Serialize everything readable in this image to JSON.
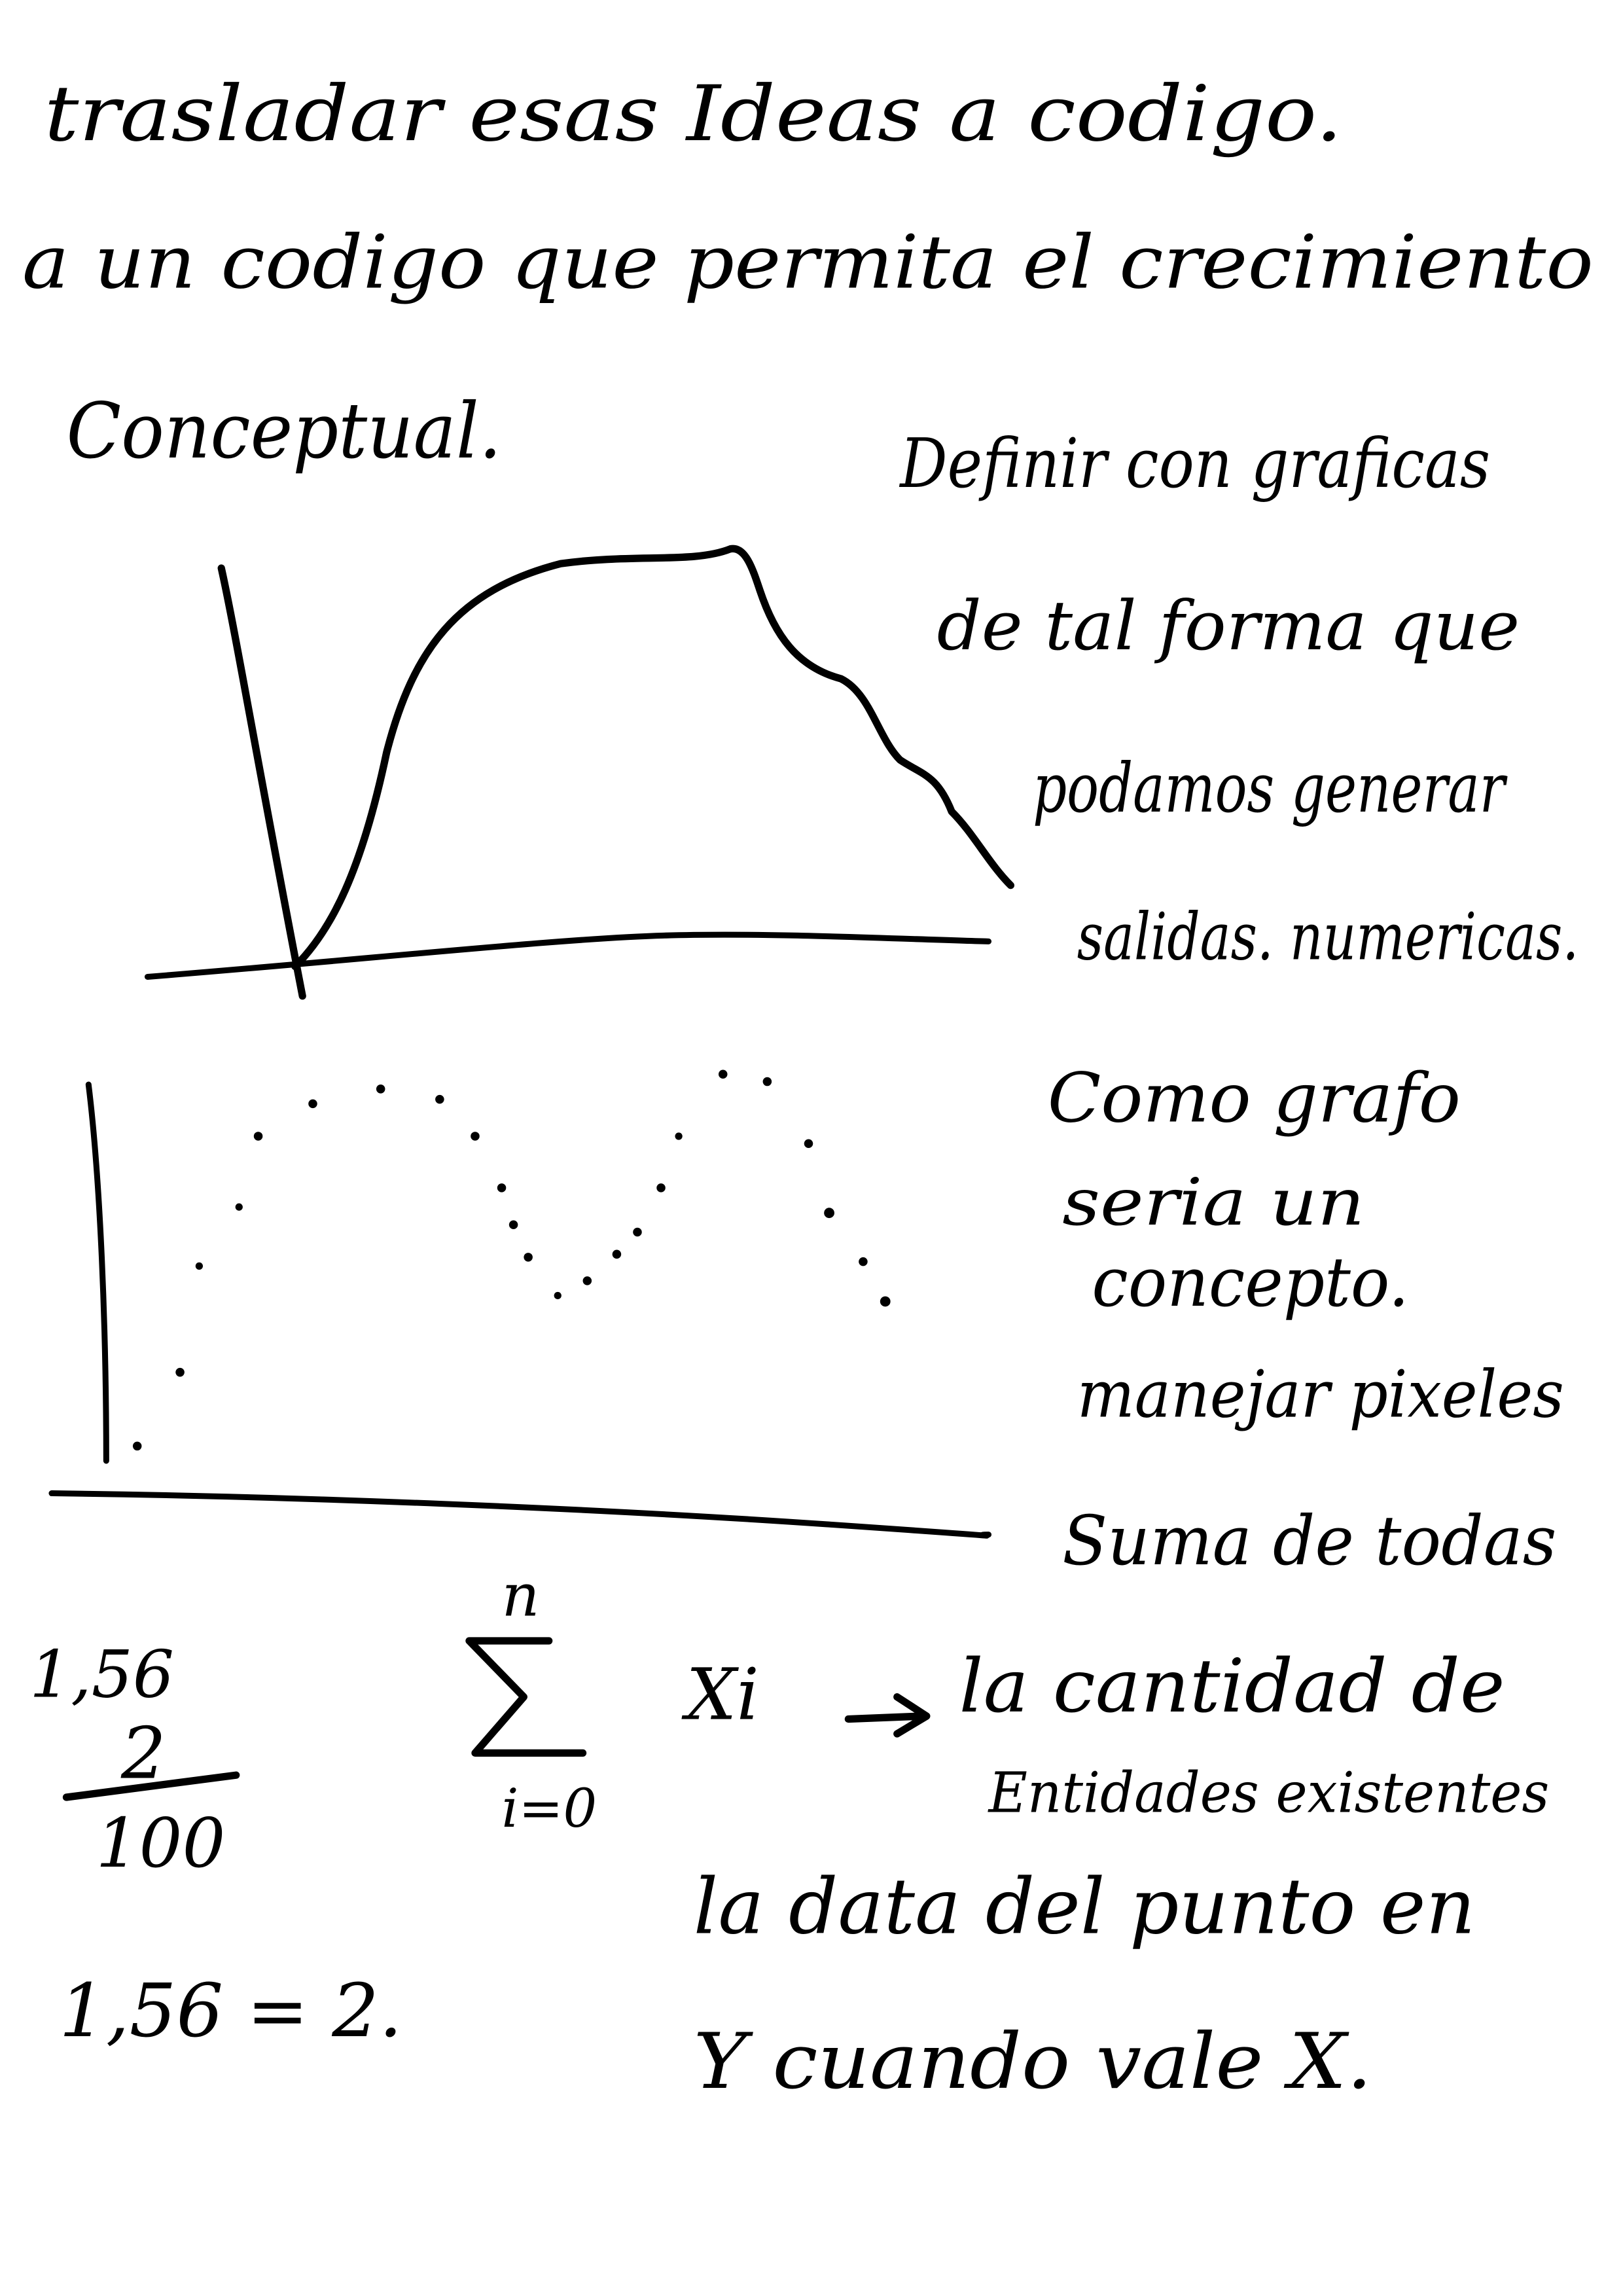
{
  "header": {
    "lines": [
      "trasladar esas Ideas a codigo.",
      "a un codigo que permita el crecimiento",
      "Conceptual."
    ]
  },
  "notes": {
    "graph_note": [
      "Definir con graficas",
      "de tal forma que",
      "podamos generar",
      "salidas. numericas."
    ],
    "dots_note": [
      "Como grafo",
      "seria un",
      "concepto.",
      "manejar pixeles",
      "Suma de todas"
    ]
  },
  "math": {
    "left": {
      "number": "1,56",
      "numerator": "2",
      "denominator": "100",
      "equation": "1,56 = 2."
    },
    "sum": {
      "upper": "n",
      "lower": "i=0",
      "term": "Xi"
    },
    "explanation": [
      "la cantidad de",
      "Entidades existentes",
      "la data del punto en",
      "Y cuando vale X."
    ]
  }
}
